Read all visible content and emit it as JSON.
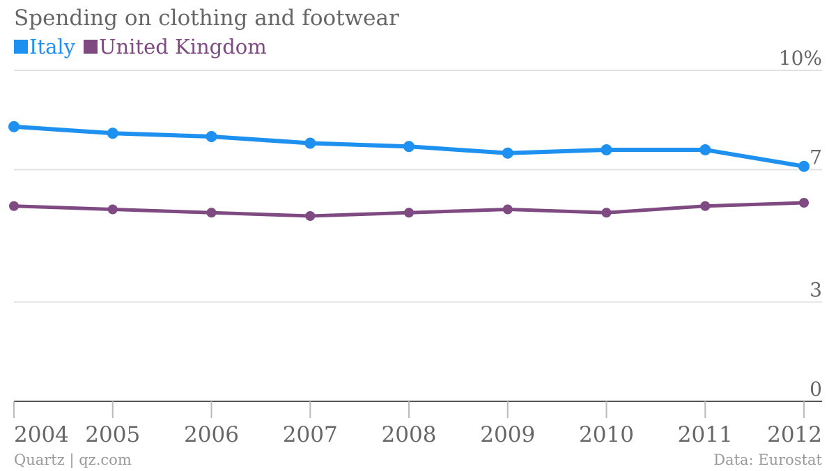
{
  "title": "Spending on clothing and footwear",
  "footer": {
    "source_left": "Quartz | qz.com",
    "source_right": "Data: Eurostat"
  },
  "colors": {
    "italy": "#1E90F0",
    "uk": "#7F4A82",
    "grid": "#e2e2e2",
    "axis": "#555555",
    "text": "#666666"
  },
  "chart_data": {
    "type": "line",
    "title": "Spending on clothing and footwear",
    "categories": [
      "2004",
      "2005",
      "2006",
      "2007",
      "2008",
      "2009",
      "2010",
      "2011",
      "2012"
    ],
    "series": [
      {
        "name": "Italy",
        "color": "#1E90F0",
        "values": [
          8.3,
          8.1,
          8.0,
          7.8,
          7.7,
          7.5,
          7.6,
          7.6,
          7.1
        ]
      },
      {
        "name": "United Kingdom",
        "color": "#7F4A82",
        "values": [
          5.9,
          5.8,
          5.7,
          5.6,
          5.7,
          5.8,
          5.7,
          5.9,
          6.0
        ]
      }
    ],
    "y_ticks": [
      {
        "value": 0,
        "label": "0"
      },
      {
        "value": 3,
        "label": "3"
      },
      {
        "value": 7,
        "label": "7"
      },
      {
        "value": 10,
        "label": "10%"
      }
    ],
    "ylim": [
      0,
      10
    ],
    "xlabel": "",
    "ylabel": "",
    "grid": true,
    "legend": "top-left"
  }
}
